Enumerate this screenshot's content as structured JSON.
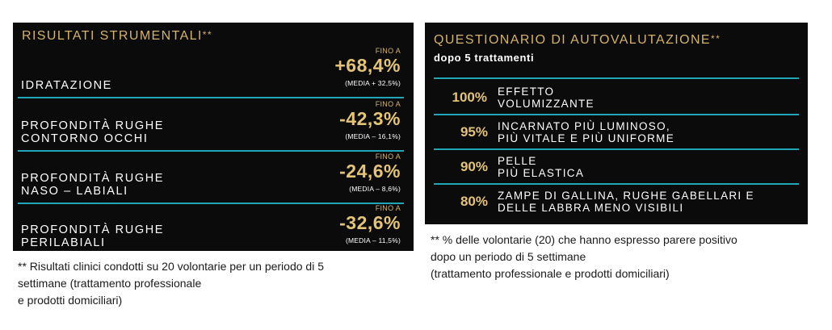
{
  "left_panel": {
    "title": "RISULTATI STRUMENTALI",
    "title_mark": "**",
    "rows": [
      {
        "label_lines": [
          "IDRATAZIONE"
        ],
        "prefix": "FINO A",
        "value": "+68,4%",
        "media": "(MEDIA + 32,5%)"
      },
      {
        "label_lines": [
          "PROFONDITÀ RUGHE",
          "CONTORNO OCCHI"
        ],
        "prefix": "FINO A",
        "value": "-42,3%",
        "media": "(MEDIA – 16,1%)"
      },
      {
        "label_lines": [
          "PROFONDITÀ RUGHE",
          "NASO – LABIALI"
        ],
        "prefix": "FINO A",
        "value": "-24,6%",
        "media": "(MEDIA – 8,6%)"
      },
      {
        "label_lines": [
          "PROFONDITÀ RUGHE",
          "PERILABIALI"
        ],
        "prefix": "FINO A",
        "value": "-32,6%",
        "media": "(MEDIA – 11,5%)"
      }
    ],
    "footnote_lines": [
      "** Risultati clinici condotti su 20 volontarie per un periodo di 5",
      "settimane (trattamento professionale",
      "e prodotti domiciliari)"
    ]
  },
  "right_panel": {
    "title": "QUESTIONARIO DI AUTOVALUTAZIONE",
    "title_mark": "**",
    "subtitle": "dopo 5 trattamenti",
    "rows": [
      {
        "percent": "100%",
        "text_lines": [
          "EFFETTO",
          "VOLUMIZZANTE"
        ]
      },
      {
        "percent": "95%",
        "text_lines": [
          "INCARNATO PIÙ LUMINOSO,",
          "PIÙ VITALE E PIÙ UNIFORME"
        ]
      },
      {
        "percent": "90%",
        "text_lines": [
          "PELLE",
          "PIÙ ELASTICA"
        ]
      },
      {
        "percent": "80%",
        "text_lines": [
          "ZAMPE DI GALLINA, RUGHE GABELLARI E",
          "DELLE LABBRA MENO VISIBILI"
        ]
      }
    ],
    "footnote_lines": [
      "** % delle volontarie (20) che hanno espresso parere positivo",
      "dopo un periodo di 5 settimane",
      "(trattamento professionale e prodotti domiciliari)"
    ]
  }
}
